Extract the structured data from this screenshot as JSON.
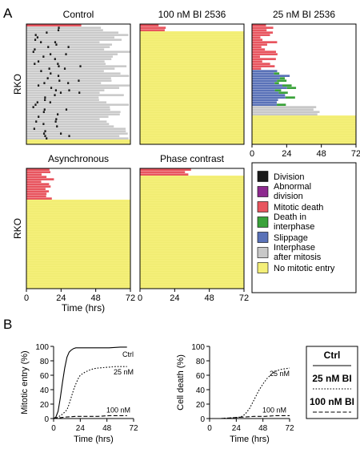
{
  "figure": {
    "section_a_label": "A",
    "section_b_label": "B",
    "row_label": "RKO",
    "time_axis_label": "Time (hrs)"
  },
  "colors": {
    "division": "#1a1a1a",
    "abnormal_division": "#8e2a8f",
    "mitotic_death": "#e8555f",
    "death_interphase": "#3aa23a",
    "slippage": "#5a72b8",
    "interphase_after_mitosis": "#c8c8c8",
    "no_mitotic_entry": "#f4ef78"
  },
  "legend": {
    "items": [
      {
        "key": "division",
        "label": "Division"
      },
      {
        "key": "abnormal_division",
        "label": "Abnormal\ndivision"
      },
      {
        "key": "mitotic_death",
        "label": "Mitotic death"
      },
      {
        "key": "death_interphase",
        "label": "Death in\ninterphase"
      },
      {
        "key": "slippage",
        "label": "Slippage"
      },
      {
        "key": "interphase_after_mitosis",
        "label": "Interphase\nafter mitosis"
      },
      {
        "key": "no_mitotic_entry",
        "label": "No mitotic entry"
      }
    ]
  },
  "chart_data": [
    {
      "type": "single-cell timeline",
      "title": "Control",
      "x_ticks": [
        "0",
        "24",
        "48",
        "72"
      ],
      "xlim": [
        0,
        72
      ],
      "cells": 50,
      "groups": [
        {
          "outcome": "mitotic_death",
          "cells": 1,
          "start_h": [
            0,
            0
          ],
          "end_h": [
            38,
            38
          ]
        },
        {
          "outcome": "division",
          "cells": 47,
          "division_h": [
            4,
            24
          ],
          "end_h": [
            50,
            72
          ]
        },
        {
          "outcome": "no_mitotic_entry",
          "cells": 2,
          "end_h": [
            72,
            72
          ]
        }
      ]
    },
    {
      "type": "single-cell timeline",
      "title": "100 nM BI 2536",
      "x_ticks": [
        "0",
        "24",
        "48",
        "72"
      ],
      "xlim": [
        0,
        72
      ],
      "cells": 50,
      "groups": [
        {
          "outcome": "mitotic_death",
          "cells": 3,
          "start_h": [
            0,
            0
          ],
          "end_h": [
            12,
            19
          ]
        },
        {
          "outcome": "no_mitotic_entry",
          "cells": 47,
          "end_h": [
            72,
            72
          ]
        }
      ]
    },
    {
      "type": "single-cell timeline",
      "title": "25 nM BI 2536",
      "x_ticks": [
        "0",
        "24",
        "48",
        "72"
      ],
      "xlim": [
        0,
        72
      ],
      "cells": 50,
      "groups": [
        {
          "outcome": "mitotic_death",
          "cells": 19,
          "start_h": [
            0,
            0
          ],
          "end_h": [
            5,
            18
          ]
        },
        {
          "outcome": "slippage",
          "cells": 15,
          "start_h": [
            0,
            0
          ],
          "end_h": [
            12,
            28
          ]
        },
        {
          "outcome": "interphase_after_mitosis",
          "cells": 4,
          "start_h": [
            0,
            0
          ],
          "end_h": [
            42,
            54
          ]
        },
        {
          "outcome": "no_mitotic_entry",
          "cells": 12,
          "end_h": [
            72,
            72
          ]
        }
      ]
    },
    {
      "type": "single-cell timeline",
      "title": "Asynchronous",
      "x_ticks": [
        "0",
        "24",
        "48",
        "72"
      ],
      "xlim": [
        0,
        72
      ],
      "cells": 50,
      "groups": [
        {
          "outcome": "mitotic_death",
          "cells": 13,
          "start_h": [
            0,
            0
          ],
          "end_h": [
            10,
            20
          ]
        },
        {
          "outcome": "no_mitotic_entry",
          "cells": 37,
          "end_h": [
            72,
            72
          ]
        }
      ]
    },
    {
      "type": "single-cell timeline",
      "title": "Phase contrast",
      "x_ticks": [
        "0",
        "24",
        "48",
        "72"
      ],
      "xlim": [
        0,
        72
      ],
      "cells": 50,
      "groups": [
        {
          "outcome": "mitotic_death",
          "cells": 3,
          "start_h": [
            0,
            0
          ],
          "end_h": [
            22,
            38
          ]
        },
        {
          "outcome": "no_mitotic_entry",
          "cells": 47,
          "end_h": [
            72,
            72
          ]
        }
      ]
    },
    {
      "type": "line",
      "title": "",
      "xlabel": "Time (hrs)",
      "ylabel": "Mitotic entry (%)",
      "xlim": [
        0,
        72
      ],
      "ylim": [
        0,
        100
      ],
      "x_ticks": [
        "0",
        "24",
        "48",
        "72"
      ],
      "y_ticks": [
        "0",
        "20",
        "40",
        "60",
        "80",
        "100"
      ],
      "series": [
        {
          "name": "Ctrl",
          "style": "solid",
          "x": [
            0,
            2,
            4,
            6,
            8,
            10,
            12,
            14,
            16,
            18,
            20,
            24,
            30,
            40,
            50,
            60,
            66
          ],
          "y": [
            0,
            2,
            10,
            28,
            50,
            70,
            85,
            92,
            95,
            97,
            98,
            98,
            98,
            98,
            98,
            99,
            99
          ]
        },
        {
          "name": "25 nM",
          "style": "dotted",
          "x": [
            0,
            4,
            8,
            12,
            14,
            16,
            18,
            20,
            22,
            24,
            28,
            32,
            36,
            40,
            48,
            56,
            66
          ],
          "y": [
            0,
            2,
            6,
            12,
            20,
            30,
            40,
            48,
            55,
            60,
            64,
            67,
            69,
            70,
            71,
            72,
            72
          ]
        },
        {
          "name": "100 nM",
          "style": "dashed",
          "x": [
            0,
            10,
            20,
            30,
            40,
            50,
            60,
            66
          ],
          "y": [
            0,
            2,
            3,
            3,
            3,
            4,
            4,
            4
          ]
        }
      ]
    },
    {
      "type": "line",
      "title": "",
      "xlabel": "Time (hrs)",
      "ylabel": "Cell death (%)",
      "xlim": [
        0,
        72
      ],
      "ylim": [
        0,
        100
      ],
      "x_ticks": [
        "0",
        "24",
        "48",
        "72"
      ],
      "y_ticks": [
        "0",
        "20",
        "40",
        "60",
        "80",
        "100"
      ],
      "series": [
        {
          "name": "25 nM",
          "style": "dotted",
          "x": [
            0,
            10,
            20,
            28,
            32,
            36,
            40,
            44,
            48,
            52,
            56,
            60,
            64,
            68,
            72
          ],
          "y": [
            0,
            0,
            1,
            2,
            6,
            14,
            26,
            38,
            48,
            56,
            62,
            66,
            68,
            69,
            70
          ]
        },
        {
          "name": "100 nM",
          "style": "dashed",
          "x": [
            0,
            10,
            20,
            30,
            40,
            50,
            60,
            66,
            72
          ],
          "y": [
            0,
            0,
            1,
            2,
            3,
            3,
            4,
            4,
            4
          ]
        }
      ]
    }
  ],
  "line_legend": {
    "items": [
      {
        "label": "Ctrl",
        "style": "solid"
      },
      {
        "label": "25 nM BI",
        "style": "dotted"
      },
      {
        "label": "100 nM BI",
        "style": "dashed"
      }
    ]
  }
}
